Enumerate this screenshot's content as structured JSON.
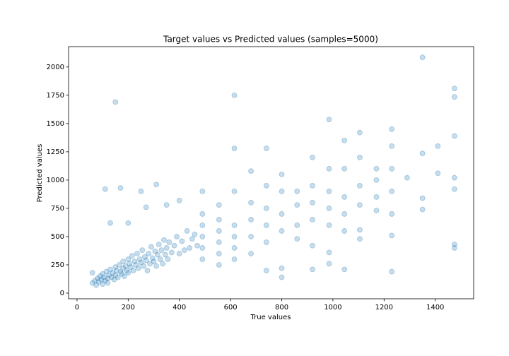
{
  "chart_data": {
    "type": "scatter",
    "title": "Target values vs Predicted values (samples=5000)",
    "x_label": "True values",
    "y_label": "Predicted values",
    "color": "#1f77b4",
    "xlim": [
      -33,
      1550
    ],
    "ylim": [
      -50,
      2180
    ],
    "xticks": [
      0,
      200,
      400,
      600,
      800,
      1000,
      1200,
      1400
    ],
    "yticks": [
      0,
      250,
      500,
      750,
      1000,
      1250,
      1500,
      1750,
      2000
    ],
    "grid": false,
    "x": [
      60,
      70,
      75,
      80,
      85,
      90,
      95,
      100,
      100,
      105,
      110,
      115,
      120,
      120,
      125,
      130,
      135,
      140,
      145,
      150,
      150,
      155,
      160,
      165,
      170,
      175,
      180,
      180,
      185,
      190,
      195,
      200,
      200,
      205,
      210,
      215,
      220,
      225,
      230,
      235,
      240,
      245,
      250,
      255,
      260,
      265,
      270,
      275,
      280,
      285,
      290,
      295,
      300,
      305,
      310,
      315,
      320,
      325,
      330,
      335,
      340,
      345,
      350,
      355,
      360,
      370,
      380,
      390,
      400,
      410,
      420,
      430,
      440,
      450,
      460,
      470,
      490,
      490,
      490,
      490,
      490,
      555,
      555,
      555,
      555,
      555,
      555,
      615,
      615,
      615,
      615,
      615,
      615,
      680,
      680,
      680,
      680,
      680,
      740,
      740,
      740,
      740,
      740,
      740,
      800,
      800,
      800,
      800,
      800,
      800,
      860,
      860,
      860,
      860,
      920,
      920,
      920,
      920,
      920,
      920,
      985,
      985,
      985,
      985,
      985,
      985,
      985,
      1045,
      1045,
      1045,
      1045,
      1045,
      1045,
      1105,
      1105,
      1105,
      1105,
      1105,
      1105,
      1170,
      1170,
      1170,
      1170,
      1230,
      1230,
      1230,
      1230,
      1230,
      1230,
      1230,
      1290,
      1350,
      1350,
      1350,
      1350,
      1410,
      1410,
      1475,
      1475,
      1475,
      1475,
      1475,
      1475,
      1475,
      150,
      615,
      110,
      170,
      250,
      310,
      400,
      490,
      60,
      130,
      200,
      270,
      350
    ],
    "y": [
      90,
      110,
      70,
      130,
      100,
      150,
      120,
      80,
      170,
      140,
      110,
      190,
      130,
      90,
      160,
      210,
      140,
      180,
      120,
      230,
      160,
      200,
      140,
      250,
      190,
      170,
      280,
      220,
      150,
      240,
      200,
      300,
      180,
      260,
      230,
      330,
      200,
      280,
      250,
      350,
      220,
      300,
      270,
      380,
      240,
      320,
      290,
      200,
      350,
      260,
      410,
      310,
      280,
      370,
      240,
      340,
      430,
      300,
      380,
      260,
      470,
      340,
      400,
      300,
      450,
      360,
      420,
      500,
      350,
      460,
      380,
      550,
      400,
      480,
      520,
      420,
      600,
      500,
      400,
      300,
      700,
      650,
      550,
      450,
      350,
      250,
      780,
      900,
      600,
      500,
      400,
      300,
      1280,
      1080,
      800,
      650,
      500,
      350,
      1280,
      950,
      750,
      600,
      450,
      200,
      1050,
      900,
      700,
      550,
      220,
      140,
      900,
      780,
      600,
      480,
      1200,
      950,
      800,
      650,
      420,
      210,
      1535,
      1100,
      900,
      750,
      600,
      360,
      260,
      1350,
      1100,
      850,
      700,
      550,
      210,
      1420,
      1200,
      950,
      780,
      560,
      480,
      1100,
      1000,
      850,
      730,
      1450,
      1300,
      1100,
      900,
      700,
      510,
      190,
      1020,
      2085,
      1235,
      840,
      740,
      1300,
      1060,
      1810,
      1735,
      1390,
      1020,
      920,
      430,
      400,
      1690,
      1750,
      920,
      930,
      900,
      960,
      820,
      900,
      180,
      620,
      620,
      760,
      780
    ]
  }
}
